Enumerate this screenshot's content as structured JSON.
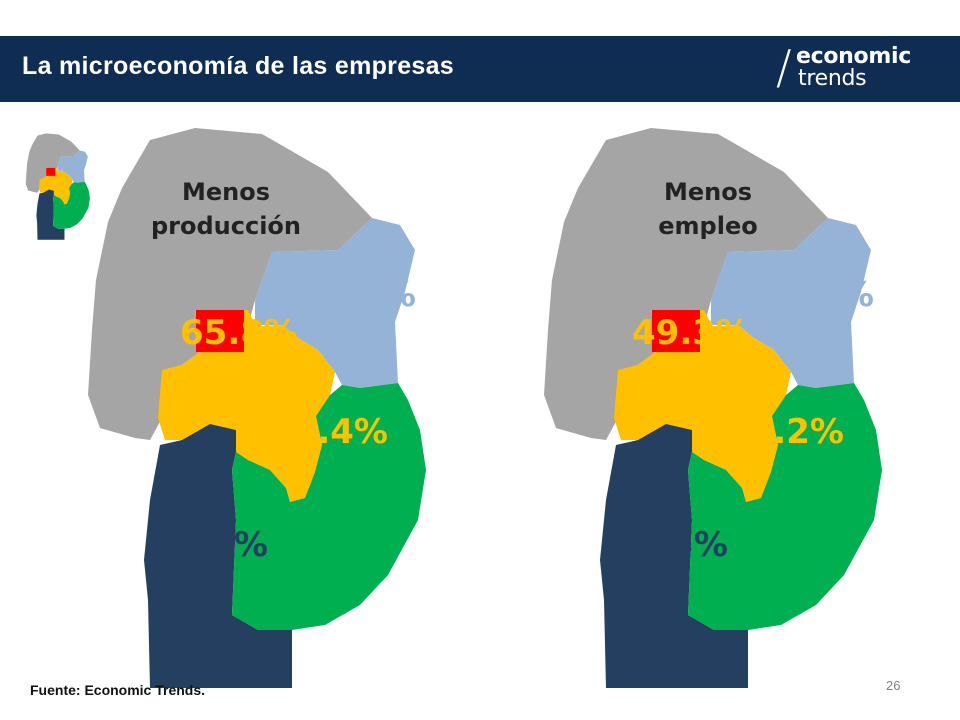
{
  "header": {
    "title": "La microeconomía de las empresas",
    "logo_slash": "/",
    "logo_line1": "economic",
    "logo_line2": "trends",
    "background_color": "#0f2d52"
  },
  "region_colors": {
    "north": "#a5a5a5",
    "northeast": "#95b3d7",
    "center_capital": "#ff0000",
    "center": "#ffc000",
    "southwest": "#243f60",
    "southeast": "#00b050"
  },
  "maps": [
    {
      "title_line1": "Menos",
      "title_line2": "producción",
      "values": {
        "northeast": "55.2%",
        "center": "65.8%",
        "east_center": "58.4%",
        "southwest": "74.1%"
      }
    },
    {
      "title_line1": "Menos",
      "title_line2": "empleo",
      "values": {
        "northeast": "32.8%",
        "center": "49.3%",
        "east_center": "37.2%",
        "southwest": "33.3%"
      }
    }
  ],
  "footer": {
    "source": "Fuente: Economic Trends.",
    "page_number": "26"
  }
}
